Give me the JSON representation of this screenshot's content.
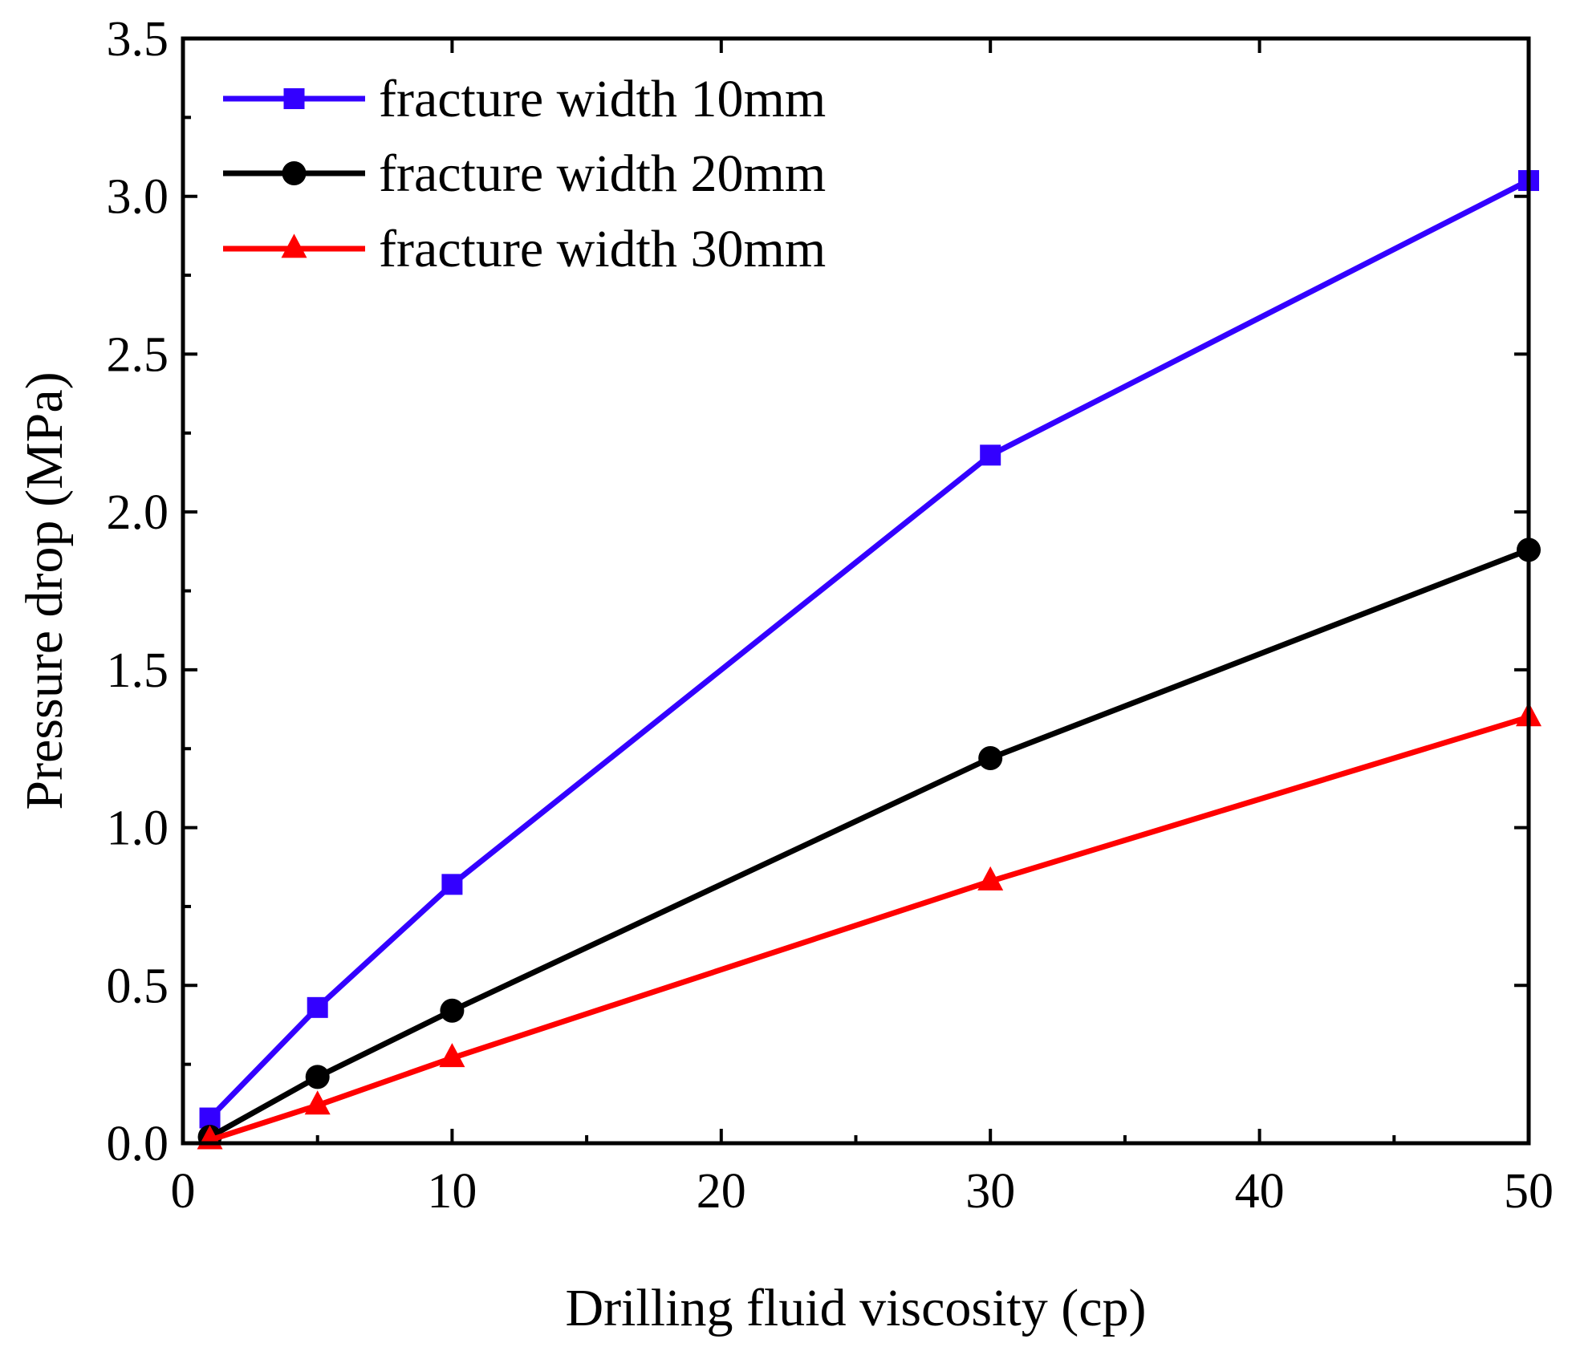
{
  "chart_data": {
    "type": "line",
    "title": "",
    "xlabel": "Drilling fluid viscosity (cp)",
    "ylabel": "Pressure drop (MPa)",
    "xlim": [
      0,
      50
    ],
    "ylim": [
      0,
      3.5
    ],
    "x_major_ticks": [
      0,
      10,
      20,
      30,
      40,
      50
    ],
    "x_minor_ticks": [
      5,
      15,
      25,
      35,
      45
    ],
    "y_major_ticks": [
      0,
      0.5,
      1.0,
      1.5,
      2.0,
      2.5,
      3.0,
      3.5
    ],
    "y_minor_ticks": [
      0.25,
      0.75,
      1.25,
      1.75,
      2.25,
      2.75,
      3.25
    ],
    "x_tick_labels": [
      "0",
      "10",
      "20",
      "30",
      "40",
      "50"
    ],
    "y_tick_labels": [
      "0.0",
      "0.5",
      "1.0",
      "1.5",
      "2.0",
      "2.5",
      "3.0",
      "3.5"
    ],
    "grid": false,
    "legend_position": "top-left",
    "series": [
      {
        "name": "fracture width 10mm",
        "color": "#3300ff",
        "marker": "square",
        "x": [
          1,
          5,
          10,
          30,
          50
        ],
        "y": [
          0.08,
          0.43,
          0.82,
          2.18,
          3.05
        ]
      },
      {
        "name": "fracture width 20mm",
        "color": "#000000",
        "marker": "circle",
        "x": [
          1,
          5,
          10,
          30,
          50
        ],
        "y": [
          0.02,
          0.21,
          0.42,
          1.22,
          1.88
        ]
      },
      {
        "name": "fracture width 30mm",
        "color": "#ff0000",
        "marker": "triangle",
        "x": [
          1,
          5,
          10,
          30,
          50
        ],
        "y": [
          0.01,
          0.12,
          0.27,
          0.83,
          1.35
        ]
      }
    ]
  }
}
